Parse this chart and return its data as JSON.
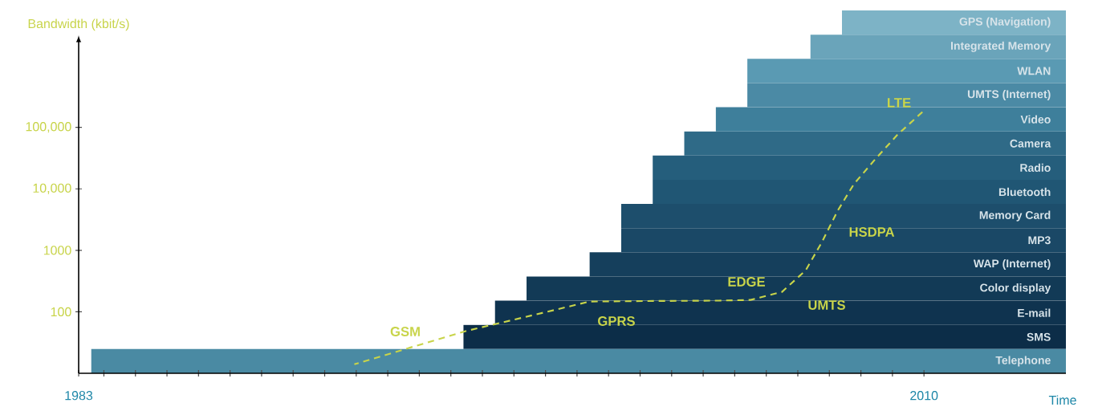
{
  "chart_data": [
    {
      "type": "line",
      "ylabel": "Bandwidth (kbit/s)",
      "log": "y",
      "line_style": "dashed",
      "tick_labels": "y",
      "xlim": [
        1983.2,
        2014.5
      ],
      "ylim": [
        10,
        2400000
      ],
      "yticks": [
        100,
        1000,
        {
          "value": 10000,
          "label": "10,000"
        },
        {
          "value": 100000,
          "label": "100,000"
        }
      ],
      "series": [
        {
          "color": "#c8d44a",
          "x": [
            1991.94,
            1993.9,
            1995.5,
            1997.3,
            1999.4,
            2001.45,
            2003.5,
            2004.5,
            2005.5,
            2006.25,
            2006.76,
            2007.27,
            2007.78,
            2008.47,
            2009.16,
            2009.95
          ],
          "values": [
            14,
            28,
            49,
            81,
            147,
            150,
            152,
            156,
            211,
            473,
            1350,
            4470,
            12000,
            31000,
            76000,
            178000
          ]
        }
      ],
      "annotations": [
        "GSM",
        "GPRS",
        "EDGE",
        "UMTS",
        "HSDPA",
        "LTE"
      ]
    },
    {
      "type": "bar",
      "orientation": "horizontal",
      "xlabel": "Time",
      "xlim": [
        1983.2,
        2014.5
      ],
      "xticks": [
        {
          "value": 1983.2,
          "label": "1983"
        },
        {
          "value": 1984,
          "label": null
        },
        {
          "value": 1985,
          "label": null
        },
        {
          "value": 1986,
          "label": null
        },
        {
          "value": 1987,
          "label": null
        },
        {
          "value": 1988,
          "label": null
        },
        {
          "value": 1989,
          "label": null
        },
        {
          "value": 1990,
          "label": null
        },
        {
          "value": 1991,
          "label": null
        },
        {
          "value": 1992,
          "label": null
        },
        {
          "value": 1993,
          "label": null
        },
        {
          "value": 1994,
          "label": null
        },
        {
          "value": 1995,
          "label": null
        },
        {
          "value": 1996,
          "label": null
        },
        {
          "value": 1997,
          "label": null
        },
        {
          "value": 1998,
          "label": null
        },
        {
          "value": 1999,
          "label": null
        },
        {
          "value": 2000,
          "label": null
        },
        {
          "value": 2001,
          "label": null
        },
        {
          "value": 2002,
          "label": null
        },
        {
          "value": 2003,
          "label": null
        },
        {
          "value": 2004,
          "label": null
        },
        {
          "value": 2005,
          "label": null
        },
        {
          "value": 2006,
          "label": null
        },
        {
          "value": 2007,
          "label": null
        },
        {
          "value": 2008,
          "label": null
        },
        {
          "value": 2009,
          "label": null
        },
        2010
      ],
      "categories": [
        "GPS (Navigation)",
        "Integrated Memory",
        "WLAN",
        "UMTS (Internet)",
        "Video",
        "Camera",
        "Radio",
        "Bluetooth",
        "Memory Card",
        "MP3",
        "WAP (Internet)",
        "Color display",
        "E-mail",
        "SMS",
        "Telephone"
      ],
      "base": [
        2007.4,
        2006.4,
        2004.4,
        2004.4,
        2003.4,
        2002.4,
        2001.4,
        2001.4,
        2000.4,
        2000.4,
        1999.4,
        1997.4,
        1996.4,
        1995.4,
        1983.6
      ],
      "values": [
        7.1,
        8.1,
        10.1,
        10.1,
        11.1,
        12.1,
        13.1,
        13.1,
        14.1,
        14.1,
        15.1,
        17.1,
        18.1,
        19.1,
        30.9
      ],
      "colors": [
        "#7db3c6",
        "#6aa4ba",
        "#5a9ab3",
        "#4b8aa5",
        "#3e7f9b",
        "#2f6a87",
        "#255e7c",
        "#205674",
        "#1d4e6c",
        "#1a4866",
        "#153f5c",
        "#123a56",
        "#0f334f",
        "#0c2d48",
        "#4a8aa3"
      ]
    }
  ]
}
